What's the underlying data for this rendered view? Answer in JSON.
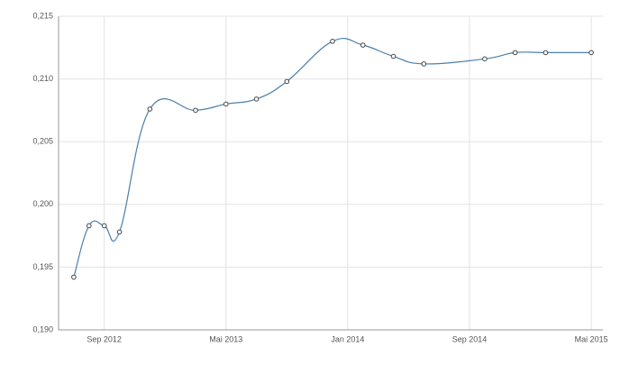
{
  "chart_data": {
    "type": "line",
    "x": [
      "2012-07",
      "2012-08",
      "2012-09",
      "2012-10",
      "2012-12",
      "2013-03",
      "2013-05",
      "2013-07",
      "2013-09",
      "2013-12",
      "2014-02",
      "2014-04",
      "2014-06",
      "2014-10",
      "2014-12",
      "2015-02",
      "2015-05"
    ],
    "series": [
      {
        "color": "#4a7fab",
        "values": [
          0.1942,
          0.1983,
          0.1983,
          0.1978,
          0.2076,
          0.2075,
          0.208,
          0.2084,
          0.2098,
          0.213,
          0.2127,
          0.2118,
          0.2112,
          0.2116,
          0.2121,
          0.2121,
          0.2121
        ]
      }
    ],
    "xlim": [
      "2012-06",
      "2015-06"
    ],
    "xticks": [
      {
        "value": "2012-09",
        "label": "Sep 2012"
      },
      {
        "value": "2013-05",
        "label": "Mai 2013"
      },
      {
        "value": "2014-01",
        "label": "Jan 2014"
      },
      {
        "value": "2014-09",
        "label": "Sep 2014"
      },
      {
        "value": "2015-05",
        "label": "Mai 2015"
      }
    ],
    "ylim": [
      0.19,
      0.215
    ],
    "yticks": [
      {
        "value": 0.19,
        "label": "0,190"
      },
      {
        "value": 0.195,
        "label": "0,195"
      },
      {
        "value": 0.2,
        "label": "0,200"
      },
      {
        "value": 0.205,
        "label": "0,205"
      },
      {
        "value": 0.21,
        "label": "0,210"
      },
      {
        "value": 0.215,
        "label": "0,215"
      }
    ],
    "grid": true
  }
}
